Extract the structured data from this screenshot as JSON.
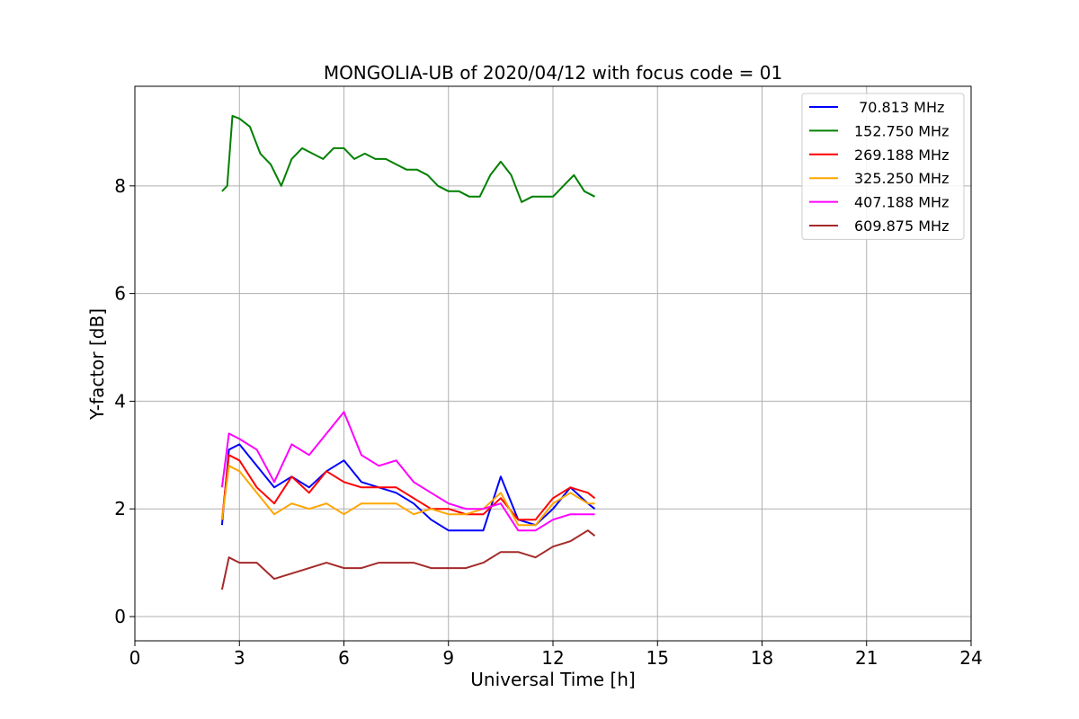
{
  "chart_data": {
    "type": "line",
    "title": "MONGOLIA-UB of 2020/04/12 with focus code = 01",
    "xlabel": "Universal Time [h]",
    "ylabel": "Y-factor [dB]",
    "xlim": [
      0,
      24
    ],
    "ylim": [
      -0.45,
      9.85
    ],
    "xticks": [
      0,
      3,
      6,
      9,
      12,
      15,
      18,
      21,
      24
    ],
    "yticks": [
      0,
      2,
      4,
      6,
      8
    ],
    "grid": true,
    "legend_position": "top-right",
    "series": [
      {
        "name": " 70.813 MHz",
        "color": "#0000ff",
        "x": [
          2.5,
          2.7,
          3.0,
          3.5,
          4.0,
          4.5,
          5.0,
          5.5,
          6.0,
          6.5,
          7.0,
          7.5,
          8.0,
          8.5,
          9.0,
          9.5,
          10.0,
          10.5,
          11.0,
          11.5,
          12.0,
          12.5,
          13.0,
          13.2
        ],
        "y": [
          1.7,
          3.1,
          3.2,
          2.8,
          2.4,
          2.6,
          2.4,
          2.7,
          2.9,
          2.5,
          2.4,
          2.3,
          2.1,
          1.8,
          1.6,
          1.6,
          1.6,
          2.6,
          1.8,
          1.7,
          2.0,
          2.4,
          2.1,
          2.0
        ]
      },
      {
        "name": "152.750 MHz",
        "color": "#008000",
        "x": [
          2.5,
          2.65,
          2.8,
          3.0,
          3.3,
          3.6,
          3.9,
          4.2,
          4.5,
          4.8,
          5.1,
          5.4,
          5.7,
          6.0,
          6.3,
          6.6,
          6.9,
          7.2,
          7.5,
          7.8,
          8.1,
          8.4,
          8.7,
          9.0,
          9.3,
          9.6,
          9.9,
          10.2,
          10.5,
          10.8,
          11.1,
          11.4,
          11.7,
          12.0,
          12.3,
          12.6,
          12.9,
          13.2
        ],
        "y": [
          7.9,
          8.0,
          9.3,
          9.25,
          9.1,
          8.6,
          8.4,
          8.0,
          8.5,
          8.7,
          8.6,
          8.5,
          8.7,
          8.7,
          8.5,
          8.6,
          8.5,
          8.5,
          8.4,
          8.3,
          8.3,
          8.2,
          8.0,
          7.9,
          7.9,
          7.8,
          7.8,
          8.2,
          8.45,
          8.2,
          7.7,
          7.8,
          7.8,
          7.8,
          8.0,
          8.2,
          7.9,
          7.8
        ]
      },
      {
        "name": "269.188 MHz",
        "color": "#ff0000",
        "x": [
          2.5,
          2.7,
          3.0,
          3.5,
          4.0,
          4.5,
          5.0,
          5.5,
          6.0,
          6.5,
          7.0,
          7.5,
          8.0,
          8.5,
          9.0,
          9.5,
          10.0,
          10.5,
          11.0,
          11.5,
          12.0,
          12.5,
          13.0,
          13.2
        ],
        "y": [
          1.8,
          3.0,
          2.9,
          2.4,
          2.1,
          2.6,
          2.3,
          2.7,
          2.5,
          2.4,
          2.4,
          2.4,
          2.2,
          2.0,
          2.0,
          1.9,
          1.9,
          2.2,
          1.8,
          1.8,
          2.2,
          2.4,
          2.3,
          2.2
        ]
      },
      {
        "name": "325.250 MHz",
        "color": "#ffa500",
        "x": [
          2.5,
          2.7,
          3.0,
          3.5,
          4.0,
          4.5,
          5.0,
          5.5,
          6.0,
          6.5,
          7.0,
          7.5,
          8.0,
          8.5,
          9.0,
          9.5,
          10.0,
          10.5,
          11.0,
          11.5,
          12.0,
          12.5,
          13.0,
          13.2
        ],
        "y": [
          1.8,
          2.8,
          2.7,
          2.3,
          1.9,
          2.1,
          2.0,
          2.1,
          1.9,
          2.1,
          2.1,
          2.1,
          1.9,
          2.0,
          1.9,
          1.9,
          2.0,
          2.3,
          1.7,
          1.7,
          2.1,
          2.3,
          2.1,
          2.1
        ]
      },
      {
        "name": "407.188 MHz",
        "color": "#ff00ff",
        "x": [
          2.5,
          2.7,
          3.0,
          3.5,
          4.0,
          4.5,
          5.0,
          5.5,
          6.0,
          6.5,
          7.0,
          7.5,
          8.0,
          8.5,
          9.0,
          9.5,
          10.0,
          10.5,
          11.0,
          11.5,
          12.0,
          12.5,
          13.0,
          13.2
        ],
        "y": [
          2.4,
          3.4,
          3.3,
          3.1,
          2.5,
          3.2,
          3.0,
          3.4,
          3.8,
          3.0,
          2.8,
          2.9,
          2.5,
          2.3,
          2.1,
          2.0,
          2.0,
          2.1,
          1.6,
          1.6,
          1.8,
          1.9,
          1.9,
          1.9
        ]
      },
      {
        "name": "609.875 MHz",
        "color": "#a52a2a",
        "x": [
          2.5,
          2.7,
          3.0,
          3.5,
          4.0,
          4.5,
          5.0,
          5.5,
          6.0,
          6.5,
          7.0,
          7.5,
          8.0,
          8.5,
          9.0,
          9.5,
          10.0,
          10.5,
          11.0,
          11.5,
          12.0,
          12.5,
          13.0,
          13.2
        ],
        "y": [
          0.5,
          1.1,
          1.0,
          1.0,
          0.7,
          0.8,
          0.9,
          1.0,
          0.9,
          0.9,
          1.0,
          1.0,
          1.0,
          0.9,
          0.9,
          0.9,
          1.0,
          1.2,
          1.2,
          1.1,
          1.3,
          1.4,
          1.6,
          1.5
        ]
      }
    ]
  }
}
